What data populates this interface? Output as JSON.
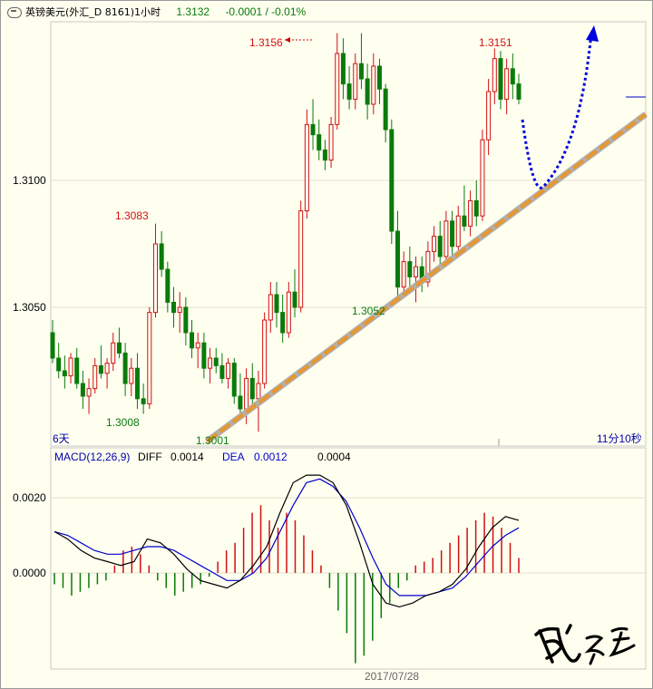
{
  "header": {
    "symbol": "英镑美元(外汇_D 8161)1小时",
    "last": "1.3132",
    "change": "-0.0001 / -0.01%"
  },
  "colors": {
    "up": "#d01010",
    "down": "#0a7a0a",
    "trend": "#e8962e",
    "forecast": "#0000dd",
    "diff": "#000000",
    "dea": "#0000cc"
  },
  "chart_data": [
    {
      "type": "candlestick",
      "title": "",
      "ylim": [
        1.2994,
        1.3182
      ],
      "y_ticks": [
        "1.3100",
        "1.3050"
      ],
      "annotations": [
        {
          "text": "1.3156",
          "value": 1.3156,
          "kind": "high"
        },
        {
          "text": "1.3151",
          "value": 1.3151,
          "kind": "high"
        },
        {
          "text": "1.3083",
          "value": 1.3083,
          "kind": "high"
        },
        {
          "text": "1.3052",
          "value": 1.3052,
          "kind": "low"
        },
        {
          "text": "1.3008",
          "value": 1.3008,
          "kind": "low"
        },
        {
          "text": "1.3001",
          "value": 1.3001,
          "kind": "low"
        }
      ],
      "x_left_label": "6天",
      "x_right_label": "11分10秒",
      "candles": [
        [
          1.304,
          1.3045,
          1.3028,
          1.303
        ],
        [
          1.303,
          1.3036,
          1.3022,
          1.3025
        ],
        [
          1.3025,
          1.3031,
          1.3018,
          1.3023
        ],
        [
          1.3023,
          1.3032,
          1.302,
          1.303
        ],
        [
          1.303,
          1.3034,
          1.3018,
          1.302
        ],
        [
          1.302,
          1.3025,
          1.301,
          1.3015
        ],
        [
          1.3015,
          1.3022,
          1.3008,
          1.3018
        ],
        [
          1.3018,
          1.303,
          1.3016,
          1.3027
        ],
        [
          1.3027,
          1.3035,
          1.3022,
          1.3024
        ],
        [
          1.3024,
          1.303,
          1.3018,
          1.3028
        ],
        [
          1.3028,
          1.304,
          1.3025,
          1.3036
        ],
        [
          1.3036,
          1.3042,
          1.303,
          1.3032
        ],
        [
          1.3032,
          1.3036,
          1.3015,
          1.302
        ],
        [
          1.302,
          1.303,
          1.3015,
          1.3026
        ],
        [
          1.3026,
          1.3032,
          1.301,
          1.3014
        ],
        [
          1.3014,
          1.302,
          1.3008,
          1.3012
        ],
        [
          1.3012,
          1.305,
          1.301,
          1.3048
        ],
        [
          1.3048,
          1.3083,
          1.3046,
          1.3075
        ],
        [
          1.3075,
          1.308,
          1.3062,
          1.3065
        ],
        [
          1.3065,
          1.3068,
          1.3048,
          1.3052
        ],
        [
          1.3052,
          1.3058,
          1.3042,
          1.3048
        ],
        [
          1.3048,
          1.3056,
          1.304,
          1.305
        ],
        [
          1.305,
          1.3054,
          1.3035,
          1.304
        ],
        [
          1.304,
          1.3045,
          1.303,
          1.3034
        ],
        [
          1.3034,
          1.304,
          1.3026,
          1.3036
        ],
        [
          1.3036,
          1.304,
          1.3022,
          1.3026
        ],
        [
          1.3026,
          1.3034,
          1.302,
          1.303
        ],
        [
          1.303,
          1.3034,
          1.3024,
          1.3027
        ],
        [
          1.3027,
          1.3032,
          1.302,
          1.3022
        ],
        [
          1.3022,
          1.303,
          1.3018,
          1.3028
        ],
        [
          1.3028,
          1.303,
          1.3012,
          1.3015
        ],
        [
          1.3015,
          1.3024,
          1.3006,
          1.301
        ],
        [
          1.301,
          1.3026,
          1.3004,
          1.3022
        ],
        [
          1.3022,
          1.3028,
          1.301,
          1.3014
        ],
        [
          1.3014,
          1.3025,
          1.3001,
          1.302
        ],
        [
          1.302,
          1.3048,
          1.3018,
          1.3045
        ],
        [
          1.3045,
          1.306,
          1.304,
          1.3055
        ],
        [
          1.3055,
          1.306,
          1.3042,
          1.3048
        ],
        [
          1.3048,
          1.3055,
          1.3036,
          1.304
        ],
        [
          1.304,
          1.306,
          1.3038,
          1.3056
        ],
        [
          1.3056,
          1.3065,
          1.3046,
          1.305
        ],
        [
          1.305,
          1.3092,
          1.3048,
          1.3088
        ],
        [
          1.3088,
          1.3128,
          1.3085,
          1.3122
        ],
        [
          1.3122,
          1.3132,
          1.3112,
          1.3118
        ],
        [
          1.3118,
          1.3124,
          1.3108,
          1.3112
        ],
        [
          1.3112,
          1.3116,
          1.3104,
          1.3108
        ],
        [
          1.3108,
          1.3125,
          1.3105,
          1.3122
        ],
        [
          1.3122,
          1.3158,
          1.312,
          1.315
        ],
        [
          1.315,
          1.3156,
          1.3132,
          1.3138
        ],
        [
          1.3138,
          1.3145,
          1.3128,
          1.3132
        ],
        [
          1.3132,
          1.315,
          1.3128,
          1.3146
        ],
        [
          1.3146,
          1.3158,
          1.3136,
          1.314
        ],
        [
          1.314,
          1.3146,
          1.3124,
          1.313
        ],
        [
          1.313,
          1.315,
          1.3126,
          1.3145
        ],
        [
          1.3145,
          1.3148,
          1.313,
          1.3136
        ],
        [
          1.3136,
          1.3138,
          1.3115,
          1.312
        ],
        [
          1.312,
          1.3124,
          1.3075,
          1.308
        ],
        [
          1.308,
          1.3088,
          1.3052,
          1.3058
        ],
        [
          1.3058,
          1.3072,
          1.3054,
          1.3068
        ],
        [
          1.3068,
          1.3074,
          1.3058,
          1.3062
        ],
        [
          1.3062,
          1.307,
          1.3052,
          1.3066
        ],
        [
          1.3066,
          1.307,
          1.3056,
          1.306
        ],
        [
          1.306,
          1.3076,
          1.3058,
          1.3072
        ],
        [
          1.3072,
          1.3082,
          1.3068,
          1.3078
        ],
        [
          1.3078,
          1.3084,
          1.3066,
          1.307
        ],
        [
          1.307,
          1.3088,
          1.3068,
          1.3084
        ],
        [
          1.3084,
          1.3088,
          1.307,
          1.3074
        ],
        [
          1.3074,
          1.309,
          1.3072,
          1.3086
        ],
        [
          1.3086,
          1.3098,
          1.308,
          1.3082
        ],
        [
          1.3082,
          1.3096,
          1.3078,
          1.3092
        ],
        [
          1.3092,
          1.31,
          1.3082,
          1.3086
        ],
        [
          1.3086,
          1.312,
          1.3084,
          1.3116
        ],
        [
          1.3116,
          1.314,
          1.311,
          1.3135
        ],
        [
          1.3135,
          1.3152,
          1.313,
          1.3148
        ],
        [
          1.3148,
          1.3151,
          1.3128,
          1.3132
        ],
        [
          1.3132,
          1.3148,
          1.3126,
          1.3144
        ],
        [
          1.3144,
          1.315,
          1.3132,
          1.3138
        ],
        [
          1.3138,
          1.3142,
          1.313,
          1.3132
        ]
      ]
    },
    {
      "type": "line",
      "title": "MACD(12,26,9)",
      "legend": [
        {
          "name": "DIFF",
          "value": "0.0014"
        },
        {
          "name": "DEA",
          "value": "0.0012"
        },
        {
          "name": "",
          "value": "0.0004"
        }
      ],
      "ylim": [
        -0.0024,
        0.0028
      ],
      "y_ticks": [
        "0.0020",
        "0.0000"
      ],
      "x_label": "2017/07/28",
      "hist": [
        -0.0003,
        -0.0004,
        -0.0006,
        -0.0005,
        -0.0004,
        -0.0003,
        -0.0002,
        0.0002,
        0.0006,
        0.0007,
        0.0005,
        0.0002,
        -0.0002,
        -0.0004,
        -0.0006,
        -0.0005,
        -0.0004,
        -0.0003,
        -0.0001,
        0.0003,
        0.0006,
        0.0008,
        0.0012,
        0.0016,
        0.0018,
        0.0014,
        0.0012,
        0.0016,
        0.0014,
        0.001,
        0.0006,
        0.0002,
        -0.0004,
        -0.001,
        -0.0016,
        -0.0024,
        -0.0022,
        -0.0018,
        -0.0012,
        -0.0008,
        -0.0004,
        -0.0002,
        0.0002,
        0.0003,
        0.0004,
        0.0006,
        0.0008,
        0.001,
        0.0012,
        0.0014,
        0.0016,
        0.0015,
        0.0012,
        0.0008,
        0.0004
      ],
      "diff": [
        0.0011,
        0.0009,
        0.0006,
        0.0004,
        0.0003,
        0.0002,
        0.0003,
        0.0009,
        0.0008,
        0.0005,
        0.0001,
        -0.0002,
        -0.0003,
        -0.0004,
        -0.0002,
        0.0002,
        0.0007,
        0.0016,
        0.0024,
        0.0026,
        0.0026,
        0.0024,
        0.0018,
        0.0008,
        -0.0003,
        -0.0008,
        -0.0009,
        -0.0008,
        -0.0006,
        -0.0005,
        -0.0003,
        0.0001,
        0.0007,
        0.0012,
        0.0015,
        0.0014
      ],
      "dea": [
        0.0011,
        0.001,
        0.0008,
        0.0006,
        0.0005,
        0.0005,
        0.0006,
        0.0007,
        0.0007,
        0.0006,
        0.0004,
        0.0002,
        0.0,
        -0.0002,
        -0.0002,
        0.0,
        0.0004,
        0.0011,
        0.0018,
        0.0024,
        0.0025,
        0.0023,
        0.0019,
        0.0012,
        0.0004,
        -0.0003,
        -0.0006,
        -0.0006,
        -0.0006,
        -0.0005,
        -0.0004,
        -0.0001,
        0.0003,
        0.0007,
        0.001,
        0.0012
      ]
    }
  ]
}
